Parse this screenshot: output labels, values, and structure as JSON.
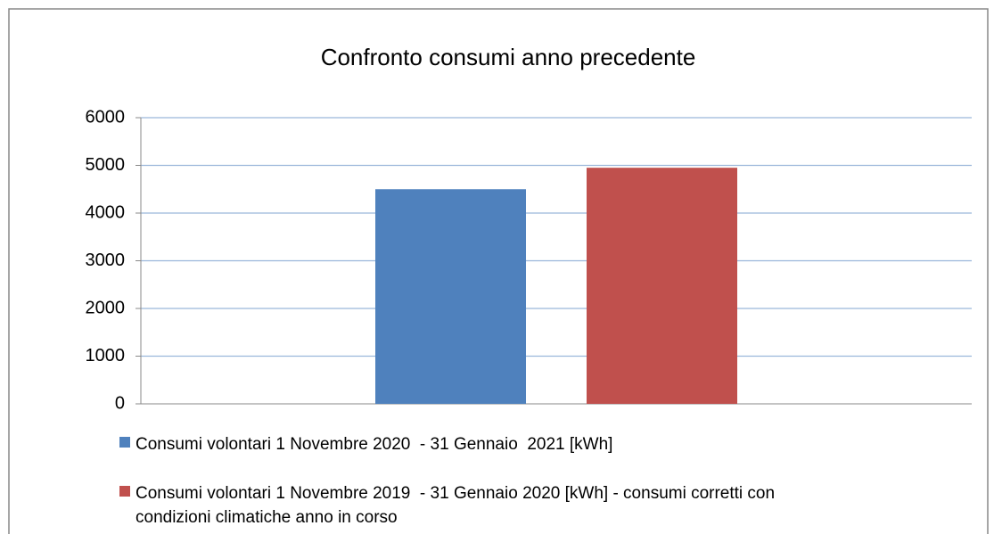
{
  "chart_data": {
    "type": "bar",
    "title": "Confronto consumi anno precedente",
    "categories": [
      null
    ],
    "series": [
      {
        "name": "Consumi volontari 1 Novembre 2020  - 31 Gennaio  2021 [kWh]",
        "color": "#4f81bd",
        "values": [
          4500
        ]
      },
      {
        "name": "Consumi volontari 1 Novembre 2019  - 31 Gennaio 2020 [kWh] - consumi corretti con condizioni climatiche anno in corso",
        "color": "#c0504d",
        "values": [
          4950
        ]
      }
    ],
    "ylim": [
      0,
      6000
    ],
    "yticks": [
      0,
      1000,
      2000,
      3000,
      4000,
      5000,
      6000
    ],
    "grid": true,
    "legend": "bottom"
  }
}
